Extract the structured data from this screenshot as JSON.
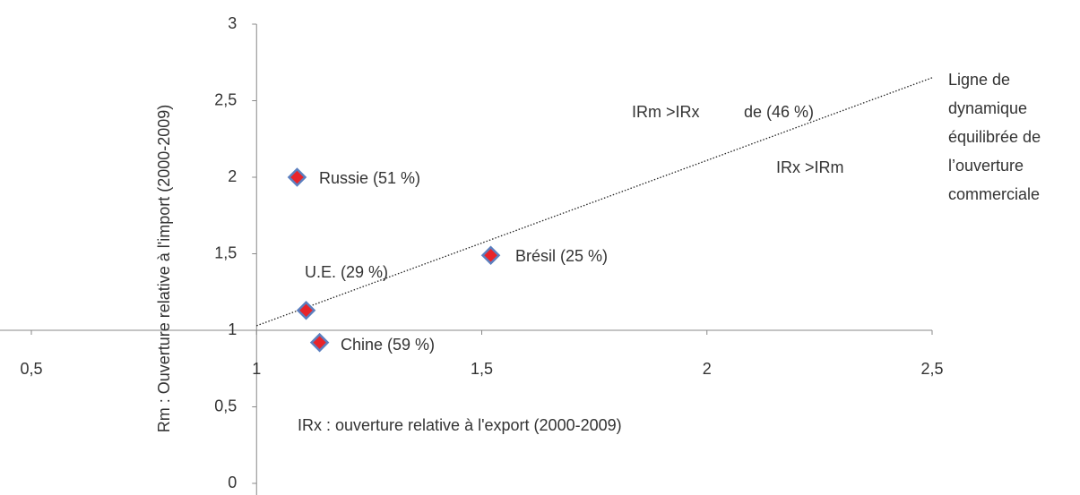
{
  "chart_data": {
    "type": "scatter",
    "x_label": "IRx : ouverture relative à l'export (2000-2009)",
    "y_label": "Rm : Ouverture relative  à l'import (2000-2009)",
    "labels": [
      "Russie (51 %)",
      "Brésil (25 %)",
      "U.E. (29 %)",
      "Chine (59 %)"
    ],
    "x": [
      1.09,
      1.52,
      1.11,
      1.14
    ],
    "values": [
      2.0,
      1.49,
      1.13,
      0.92
    ],
    "color": "#e8242a",
    "edge_color": "#5b7fbf",
    "trendline": {
      "x": [
        1,
        2.5
      ],
      "y": [
        1.03,
        2.65
      ]
    },
    "annotations": [
      "IRm >IRx",
      "de (46 %)",
      "IRx >IRm"
    ],
    "trendline_label": [
      "Ligne de",
      "dynamique",
      "équilibrée de",
      "l’ouverture",
      "commerciale"
    ],
    "xlim": [
      0.5,
      2.5
    ],
    "ylim": [
      0,
      3
    ],
    "xticks": [
      {
        "value": 0.5,
        "label": "0,5"
      },
      1,
      {
        "value": 1.5,
        "label": "1,5"
      },
      2,
      {
        "value": 2.5,
        "label": "2,5"
      }
    ],
    "yticks": [
      0,
      {
        "value": 0.5,
        "label": "0,5"
      },
      1,
      {
        "value": 1.5,
        "label": "1,5"
      },
      2,
      {
        "value": 2.5,
        "label": "2,5"
      },
      3
    ],
    "x_cross": 1,
    "y_cross": 1,
    "grid": false
  }
}
